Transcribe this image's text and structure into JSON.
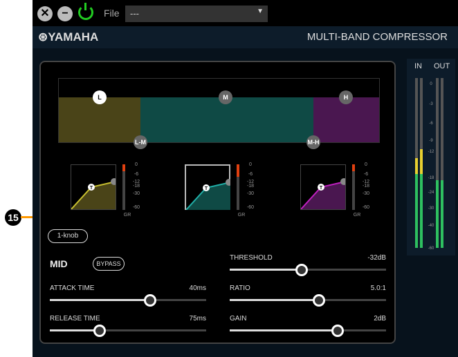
{
  "toolbar": {
    "file_label": "File",
    "file_value": "---"
  },
  "header": {
    "logo": "YAMAHA",
    "title": "MULTI-BAND COMPRESSOR"
  },
  "bands": {
    "handles": [
      "L",
      "M",
      "H",
      "L-M",
      "M-H"
    ],
    "colors": {
      "low": "#4a4418",
      "mid": "#0f4a45",
      "high": "#4a1750"
    }
  },
  "gr_scale": [
    "0",
    "-6",
    "-12",
    "-18",
    "-30",
    "-60"
  ],
  "gr_label": "GR",
  "meters": {
    "in_label": "IN",
    "out_label": "OUT",
    "scale": [
      "0",
      "-3",
      "-6",
      "-9",
      "-12",
      "-18",
      "-24",
      "-30",
      "-40",
      "-60"
    ],
    "in_levels": [
      0.53,
      0.58
    ],
    "out_levels": [
      0.4,
      0.4
    ]
  },
  "controls": {
    "one_knob": "1-knob",
    "band_name": "MID",
    "bypass": "BYPASS",
    "attack": {
      "label": "ATTACK TIME",
      "value": "40ms",
      "pos": 0.64
    },
    "release": {
      "label": "RELEASE TIME",
      "value": "75ms",
      "pos": 0.32
    },
    "threshold": {
      "label": "THRESHOLD",
      "value": "-32dB",
      "pos": 0.46
    },
    "ratio": {
      "label": "RATIO",
      "value": "5.0:1",
      "pos": 0.57
    },
    "gain": {
      "label": "GAIN",
      "value": "2dB",
      "pos": 0.69
    }
  },
  "callout": "15"
}
